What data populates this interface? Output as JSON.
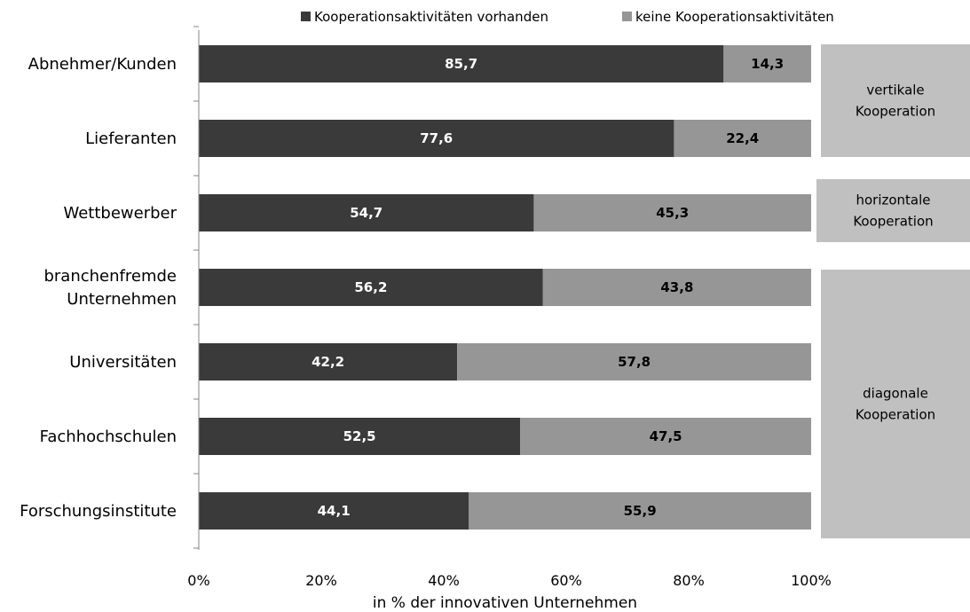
{
  "chart_data": {
    "type": "bar",
    "orientation": "horizontal",
    "stacked": true,
    "percent": true,
    "categories": [
      "Abnehmer/Kunden",
      "Lieferanten",
      "Wettbewerber",
      "branchenfremde Unternehmen",
      "Universitäten",
      "Fachhochschulen",
      "Forschungsinstitute"
    ],
    "category_lines": [
      [
        "Abnehmer/Kunden"
      ],
      [
        "Lieferanten"
      ],
      [
        "Wettbewerber"
      ],
      [
        "branchenfremde",
        "Unternehmen"
      ],
      [
        "Universitäten"
      ],
      [
        "Fachhochschulen"
      ],
      [
        "Forschungsinstitute"
      ]
    ],
    "series": [
      {
        "name": "Kooperationsaktivitäten vorhanden",
        "color": "#3a3a3a",
        "label_color": "#ffffff",
        "values": [
          85.7,
          77.6,
          54.7,
          56.2,
          42.2,
          52.5,
          44.1
        ],
        "labels": [
          "85,7",
          "77,6",
          "54,7",
          "56,2",
          "42,2",
          "52,5",
          "44,1"
        ]
      },
      {
        "name": "keine Kooperationsaktivitäten",
        "color": "#969696",
        "label_color": "#000000",
        "values": [
          14.3,
          22.4,
          45.3,
          43.8,
          57.8,
          47.5,
          55.9
        ],
        "labels": [
          "14,3",
          "22,4",
          "45,3",
          "43,8",
          "57,8",
          "47,5",
          "55,9"
        ]
      }
    ],
    "xlim": [
      0,
      100
    ],
    "xticks": [
      0,
      20,
      40,
      60,
      80,
      100
    ],
    "xtick_labels": [
      "0%",
      "20%",
      "40%",
      "60%",
      "80%",
      "100%"
    ],
    "xlabel": "in % der innovativen Unternehmen",
    "legend_position": "top",
    "grid": false,
    "groups": [
      {
        "lines": [
          "vertikale",
          "Kooperation"
        ],
        "from_index": 0,
        "to_index": 1,
        "color": "#c0c0c0"
      },
      {
        "lines": [
          "horizontale",
          "Kooperation"
        ],
        "from_index": 2,
        "to_index": 2,
        "color": "#c0c0c0"
      },
      {
        "lines": [
          "diagonale",
          "Kooperation"
        ],
        "from_index": 3,
        "to_index": 6,
        "color": "#c0c0c0"
      }
    ]
  }
}
